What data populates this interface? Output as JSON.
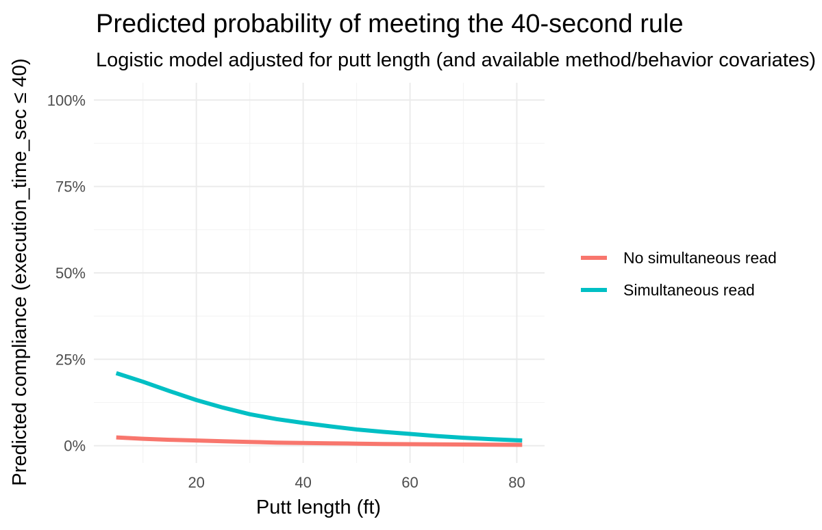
{
  "chart_data": {
    "type": "line",
    "title": "Predicted probability of meeting the 40-second rule",
    "subtitle": "Logistic model adjusted for putt length (and available method/behavior covariates)",
    "xlabel": "Putt length (ft)",
    "ylabel": "Predicted compliance (execution_time_sec ≤ 40)",
    "xlim": [
      0.8,
      85.2
    ],
    "ylim": [
      -0.05,
      1.05
    ],
    "x_ticks": [
      20,
      40,
      60,
      80
    ],
    "x_tick_labels": [
      "20",
      "40",
      "60",
      "80"
    ],
    "y_ticks": [
      0,
      0.25,
      0.5,
      0.75,
      1.0
    ],
    "y_tick_labels": [
      "0%",
      "25%",
      "50%",
      "75%",
      "100%"
    ],
    "grid": true,
    "legend_position": "right",
    "x": [
      5,
      10,
      15,
      20,
      25,
      30,
      35,
      40,
      45,
      50,
      55,
      60,
      65,
      70,
      75,
      81
    ],
    "series": [
      {
        "name": "No simultaneous read",
        "color": "#F8766D",
        "values": [
          0.024,
          0.02,
          0.017,
          0.015,
          0.013,
          0.011,
          0.009,
          0.008,
          0.007,
          0.006,
          0.005,
          0.0045,
          0.004,
          0.0035,
          0.003,
          0.0025
        ]
      },
      {
        "name": "Simultaneous read",
        "color": "#00BFC4",
        "values": [
          0.21,
          0.185,
          0.158,
          0.132,
          0.11,
          0.091,
          0.077,
          0.066,
          0.056,
          0.047,
          0.04,
          0.034,
          0.028,
          0.023,
          0.019,
          0.015
        ]
      }
    ]
  }
}
